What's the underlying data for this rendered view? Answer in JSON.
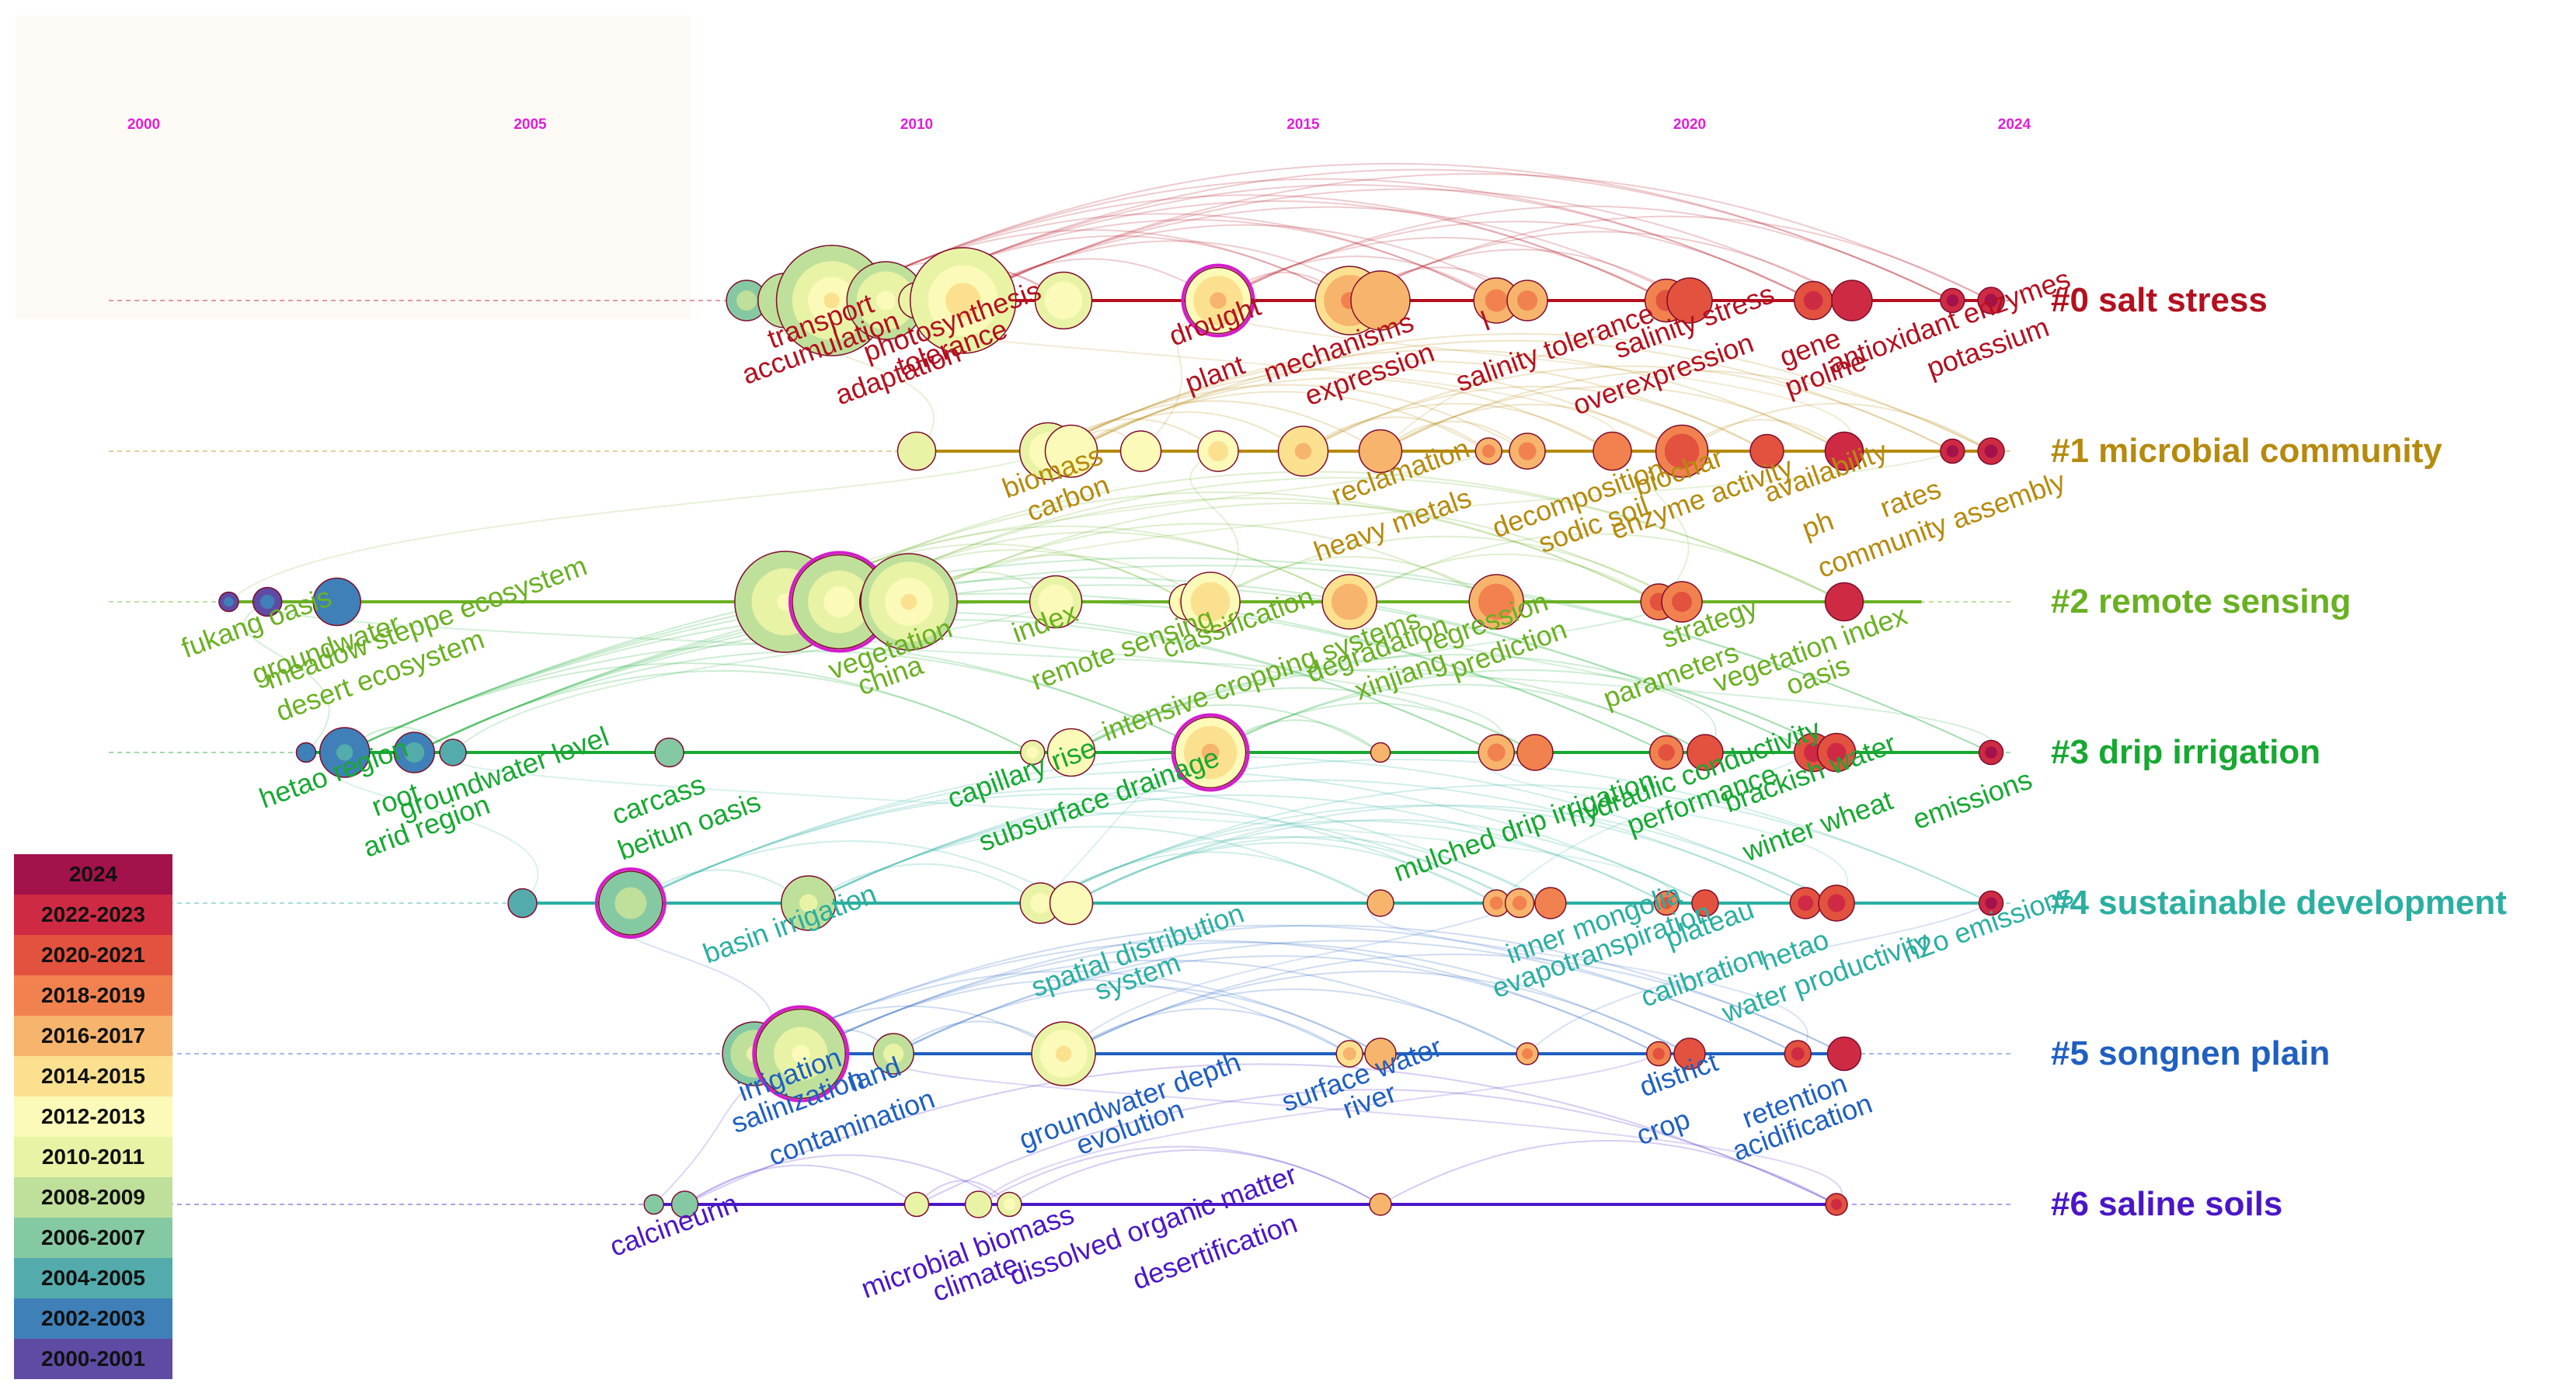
{
  "chart_data": {
    "type": "timeline",
    "title": "",
    "x_axis": {
      "range": [
        2000,
        2024.5
      ],
      "ticks": [
        "2000",
        "2005",
        "2010",
        "2015",
        "2020",
        "2024"
      ],
      "tick_values": [
        2000,
        2005,
        2010,
        2015,
        2020,
        2024.2
      ]
    },
    "clusters": [
      {
        "id": 0,
        "label": "#0 salt stress",
        "color": "#b3101f",
        "span": [
          2007.8,
          2024.0
        ],
        "keywords": [
          {
            "text": "transport",
            "year": 2008.9
          },
          {
            "text": "accumulation",
            "year": 2008.9
          },
          {
            "text": "adaptation",
            "year": 2009.9
          },
          {
            "text": "photosynthesis",
            "year": 2010.6
          },
          {
            "text": "tolerance",
            "year": 2010.6
          },
          {
            "text": "plant",
            "year": 2014.0
          },
          {
            "text": "drought",
            "year": 2014.0
          },
          {
            "text": "mechanisms",
            "year": 2015.6
          },
          {
            "text": "expression",
            "year": 2016.0
          },
          {
            "text": "l",
            "year": 2017.5
          },
          {
            "text": "salinity tolerance",
            "year": 2018.4
          },
          {
            "text": "overexpression",
            "year": 2019.8
          },
          {
            "text": "salinity stress",
            "year": 2020.2
          },
          {
            "text": "gene",
            "year": 2021.7
          },
          {
            "text": "proline",
            "year": 2021.9
          },
          {
            "text": "antioxidant enzymes",
            "year": 2023.5
          },
          {
            "text": "potassium",
            "year": 2024.0
          }
        ],
        "nodes": [
          {
            "year": 2007.8,
            "size": 1.2
          },
          {
            "year": 2008.3,
            "size": 1.8
          },
          {
            "year": 2008.9,
            "size": 4.2
          },
          {
            "year": 2009.6,
            "size": 2.8
          },
          {
            "year": 2010.0,
            "size": 1.0
          },
          {
            "year": 2010.6,
            "size": 4.0
          },
          {
            "year": 2011.9,
            "size": 1.9
          },
          {
            "year": 2013.9,
            "size": 2.3
          },
          {
            "year": 2015.6,
            "size": 2.4
          },
          {
            "year": 2016.0,
            "size": 2.0
          },
          {
            "year": 2017.5,
            "size": 1.4
          },
          {
            "year": 2017.9,
            "size": 1.2
          },
          {
            "year": 2019.7,
            "size": 1.3
          },
          {
            "year": 2020.0,
            "size": 1.4
          },
          {
            "year": 2021.6,
            "size": 1.1
          },
          {
            "year": 2022.1,
            "size": 1.2
          },
          {
            "year": 2023.4,
            "size": 0.5
          },
          {
            "year": 2023.9,
            "size": 0.6
          }
        ]
      },
      {
        "id": 1,
        "label": "#1 microbial community",
        "color": "#b58a0e",
        "span": [
          2010.0,
          2024.0
        ],
        "keywords": [
          {
            "text": "biomass",
            "year": 2011.9
          },
          {
            "text": "carbon",
            "year": 2012.1
          },
          {
            "text": "heavy metals",
            "year": 2016.3
          },
          {
            "text": "reclamation",
            "year": 2016.4
          },
          {
            "text": "decomposition",
            "year": 2018.7
          },
          {
            "text": "sodic soil",
            "year": 2018.9
          },
          {
            "text": "biochar",
            "year": 2020.0
          },
          {
            "text": "enzyme activity",
            "year": 2020.3
          },
          {
            "text": "ph",
            "year": 2021.8
          },
          {
            "text": "availability",
            "year": 2021.9
          },
          {
            "text": "rates",
            "year": 2023.0
          },
          {
            "text": "community assembly",
            "year": 2023.4
          }
        ],
        "nodes": [
          {
            "year": 2010.0,
            "size": 1.1
          },
          {
            "year": 2011.7,
            "size": 1.9
          },
          {
            "year": 2012.0,
            "size": 1.7
          },
          {
            "year": 2012.9,
            "size": 1.2
          },
          {
            "year": 2013.9,
            "size": 1.2
          },
          {
            "year": 2015.0,
            "size": 1.6
          },
          {
            "year": 2016.0,
            "size": 1.3
          },
          {
            "year": 2017.4,
            "size": 0.6
          },
          {
            "year": 2017.9,
            "size": 1.0
          },
          {
            "year": 2019.0,
            "size": 1.1
          },
          {
            "year": 2019.9,
            "size": 1.7
          },
          {
            "year": 2021.0,
            "size": 0.9
          },
          {
            "year": 2022.0,
            "size": 1.1
          },
          {
            "year": 2023.4,
            "size": 0.5
          },
          {
            "year": 2023.9,
            "size": 0.6
          }
        ]
      },
      {
        "id": 2,
        "label": "#2 remote sensing",
        "color": "#6ab023",
        "span": [
          2001.1,
          2023.0
        ],
        "keywords": [
          {
            "text": "fukang oasis",
            "year": 2001.6
          },
          {
            "text": "groundwater",
            "year": 2002.5
          },
          {
            "text": "desert ecosystem",
            "year": 2003.2
          },
          {
            "text": "meadow steppe ecosystem",
            "year": 2003.8
          },
          {
            "text": "vegetation",
            "year": 2009.8
          },
          {
            "text": "china",
            "year": 2009.8
          },
          {
            "text": "index",
            "year": 2011.8
          },
          {
            "text": "remote sensing",
            "year": 2012.8
          },
          {
            "text": "intensive cropping systems",
            "year": 2014.6
          },
          {
            "text": "classification",
            "year": 2014.3
          },
          {
            "text": "degradation",
            "year": 2016.1
          },
          {
            "text": "xinjiang",
            "year": 2016.4
          },
          {
            "text": "regression",
            "year": 2017.5
          },
          {
            "text": "prediction",
            "year": 2017.8
          },
          {
            "text": "parameters",
            "year": 2019.9
          },
          {
            "text": "strategy",
            "year": 2020.4
          },
          {
            "text": "vegetation index",
            "year": 2021.7
          },
          {
            "text": "oasis",
            "year": 2021.8
          }
        ],
        "nodes": [
          {
            "year": 2001.1,
            "size": 0.3
          },
          {
            "year": 2001.6,
            "size": 0.7
          },
          {
            "year": 2002.5,
            "size": 1.5
          },
          {
            "year": 2008.3,
            "size": 3.8
          },
          {
            "year": 2009.0,
            "size": 3.5
          },
          {
            "year": 2009.6,
            "size": 1.7
          },
          {
            "year": 2009.9,
            "size": 3.6
          },
          {
            "year": 2011.8,
            "size": 1.7
          },
          {
            "year": 2013.5,
            "size": 1.0
          },
          {
            "year": 2013.8,
            "size": 2.0
          },
          {
            "year": 2015.6,
            "size": 1.8
          },
          {
            "year": 2017.5,
            "size": 1.8
          },
          {
            "year": 2019.6,
            "size": 1.0
          },
          {
            "year": 2019.9,
            "size": 1.2
          },
          {
            "year": 2022.0,
            "size": 1.1
          }
        ]
      },
      {
        "id": 3,
        "label": "#3 drip irrigation",
        "color": "#17a832",
        "span": [
          2002.1,
          2024.0
        ],
        "keywords": [
          {
            "text": "hetao region",
            "year": 2002.6
          },
          {
            "text": "root",
            "year": 2003.4
          },
          {
            "text": "arid region",
            "year": 2003.8
          },
          {
            "text": "groundwater level",
            "year": 2004.8
          },
          {
            "text": "carcass",
            "year": 2006.8
          },
          {
            "text": "beitun oasis",
            "year": 2007.2
          },
          {
            "text": "capillary rise",
            "year": 2011.5
          },
          {
            "text": "subsurface drainage",
            "year": 2012.5
          },
          {
            "text": "mulched drip irrigation",
            "year": 2018.0
          },
          {
            "text": "hydraulic conductivity",
            "year": 2020.2
          },
          {
            "text": "performance",
            "year": 2020.3
          },
          {
            "text": "winter wheat",
            "year": 2021.8
          },
          {
            "text": "brackish water",
            "year": 2021.7
          },
          {
            "text": "emissions",
            "year": 2023.8
          }
        ],
        "nodes": [
          {
            "year": 2002.1,
            "size": 0.3
          },
          {
            "year": 2002.6,
            "size": 1.6
          },
          {
            "year": 2003.5,
            "size": 1.2
          },
          {
            "year": 2004.0,
            "size": 0.6
          },
          {
            "year": 2006.8,
            "size": 0.7
          },
          {
            "year": 2011.5,
            "size": 0.5
          },
          {
            "year": 2012.0,
            "size": 1.5
          },
          {
            "year": 2013.8,
            "size": 2.5
          },
          {
            "year": 2016.0,
            "size": 0.3
          },
          {
            "year": 2017.5,
            "size": 1.0
          },
          {
            "year": 2018.0,
            "size": 1.0
          },
          {
            "year": 2019.7,
            "size": 0.9
          },
          {
            "year": 2020.2,
            "size": 1.0
          },
          {
            "year": 2021.6,
            "size": 1.1
          },
          {
            "year": 2021.9,
            "size": 1.1
          },
          {
            "year": 2023.9,
            "size": 0.5
          }
        ]
      },
      {
        "id": 4,
        "label": "#4 sustainable development",
        "color": "#2aafa0",
        "span": [
          2004.9,
          2024.0
        ],
        "keywords": [
          {
            "text": "basin irrigation",
            "year": 2008.5
          },
          {
            "text": "spatial distribution",
            "year": 2013.0
          },
          {
            "text": "system",
            "year": 2013.0
          },
          {
            "text": "inner mongolia",
            "year": 2018.9
          },
          {
            "text": "evapotranspiration",
            "year": 2019.0
          },
          {
            "text": "calibration",
            "year": 2020.3
          },
          {
            "text": "plateau",
            "year": 2020.4
          },
          {
            "text": "hetao",
            "year": 2021.5
          },
          {
            "text": "water productivity",
            "year": 2021.9
          },
          {
            "text": "n2o emissions",
            "year": 2024.0
          }
        ],
        "nodes": [
          {
            "year": 2004.9,
            "size": 0.7
          },
          {
            "year": 2006.3,
            "size": 2.2
          },
          {
            "year": 2008.6,
            "size": 1.8
          },
          {
            "year": 2011.6,
            "size": 1.2
          },
          {
            "year": 2012.0,
            "size": 1.3
          },
          {
            "year": 2016.0,
            "size": 0.6
          },
          {
            "year": 2017.5,
            "size": 0.6
          },
          {
            "year": 2017.8,
            "size": 0.7
          },
          {
            "year": 2018.2,
            "size": 0.8
          },
          {
            "year": 2019.7,
            "size": 0.5
          },
          {
            "year": 2020.2,
            "size": 0.6
          },
          {
            "year": 2021.5,
            "size": 0.8
          },
          {
            "year": 2021.9,
            "size": 1.0
          },
          {
            "year": 2023.9,
            "size": 0.5
          }
        ]
      },
      {
        "id": 5,
        "label": "#5 songnen plain",
        "color": "#1f5fc1",
        "span": [
          2007.8,
          2022.0
        ],
        "keywords": [
          {
            "text": "irrigation",
            "year": 2008.5
          },
          {
            "text": "salinization",
            "year": 2008.6
          },
          {
            "text": "contamination",
            "year": 2009.3
          },
          {
            "text": "land",
            "year": 2009.6
          },
          {
            "text": "groundwater depth",
            "year": 2012.9
          },
          {
            "text": "evolution",
            "year": 2012.9
          },
          {
            "text": "surface water",
            "year": 2015.9
          },
          {
            "text": "river",
            "year": 2016.0
          },
          {
            "text": "crop",
            "year": 2019.8
          },
          {
            "text": "district",
            "year": 2020.0
          },
          {
            "text": "retention",
            "year": 2021.5
          },
          {
            "text": "acidification",
            "year": 2021.6
          }
        ],
        "nodes": [
          {
            "year": 2007.9,
            "size": 2.2
          },
          {
            "year": 2008.5,
            "size": 3.3
          },
          {
            "year": 2009.7,
            "size": 1.2
          },
          {
            "year": 2011.9,
            "size": 2.2
          },
          {
            "year": 2015.6,
            "size": 0.6
          },
          {
            "year": 2016.0,
            "size": 0.8
          },
          {
            "year": 2017.9,
            "size": 0.4
          },
          {
            "year": 2019.6,
            "size": 0.5
          },
          {
            "year": 2020.0,
            "size": 0.8
          },
          {
            "year": 2021.4,
            "size": 0.6
          },
          {
            "year": 2022.0,
            "size": 0.9
          }
        ]
      },
      {
        "id": 6,
        "label": "#6 saline soils",
        "color": "#4a16c8",
        "span": [
          2006.6,
          2022.0
        ],
        "keywords": [
          {
            "text": "calcineurin",
            "year": 2007.0
          },
          {
            "text": "microbial biomass",
            "year": 2010.8
          },
          {
            "text": "climate",
            "year": 2010.9
          },
          {
            "text": "dissolved organic matter",
            "year": 2013.2
          },
          {
            "text": "desertification",
            "year": 2014.0
          }
        ],
        "nodes": [
          {
            "year": 2006.6,
            "size": 0.3
          },
          {
            "year": 2007.0,
            "size": 0.6
          },
          {
            "year": 2010.0,
            "size": 0.5
          },
          {
            "year": 2010.8,
            "size": 0.6
          },
          {
            "year": 2011.2,
            "size": 0.5
          },
          {
            "year": 2016.0,
            "size": 0.4
          },
          {
            "year": 2021.9,
            "size": 0.4
          }
        ]
      }
    ],
    "legend": {
      "position": "bottom-left",
      "entries": [
        {
          "label": "2024",
          "color": "#a3124a"
        },
        {
          "label": "2022-2023",
          "color": "#cf2a44"
        },
        {
          "label": "2020-2021",
          "color": "#e2523f"
        },
        {
          "label": "2018-2019",
          "color": "#f1824f"
        },
        {
          "label": "2016-2017",
          "color": "#f7b46c"
        },
        {
          "label": "2014-2015",
          "color": "#fbe18f"
        },
        {
          "label": "2012-2013",
          "color": "#fbfab8"
        },
        {
          "label": "2010-2011",
          "color": "#e8f3a6"
        },
        {
          "label": "2008-2009",
          "color": "#bfe09a"
        },
        {
          "label": "2006-2007",
          "color": "#85c9a2"
        },
        {
          "label": "2004-2005",
          "color": "#53acab"
        },
        {
          "label": "2002-2003",
          "color": "#3f80b8"
        },
        {
          "label": "2000-2001",
          "color": "#5f4ba4"
        }
      ]
    },
    "tick_color": "#e21ed8"
  }
}
